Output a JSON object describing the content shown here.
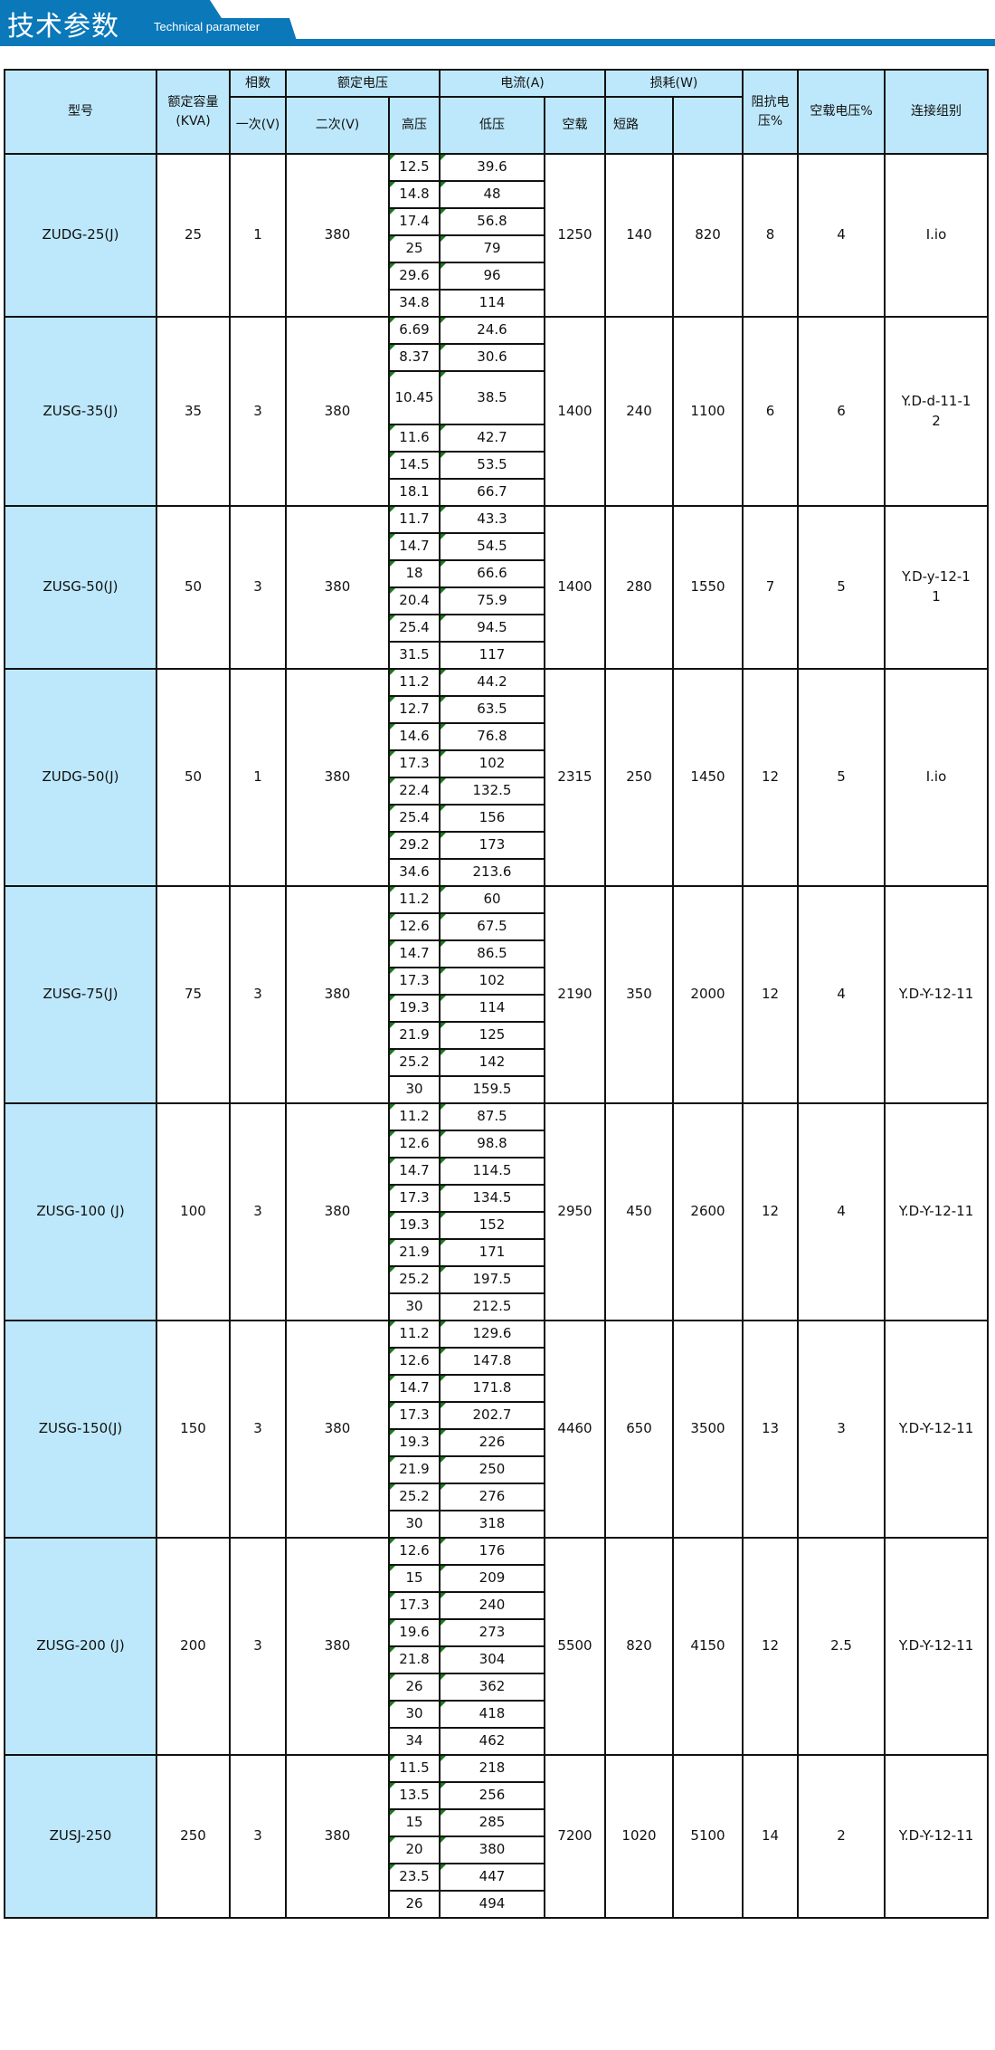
{
  "banner": {
    "title": "技术参数",
    "subtitle": "Technical parameter",
    "color": "#0a78b9"
  },
  "header": {
    "model": "型号",
    "capacity": "额定容量(KVA)",
    "phases": "相数",
    "primary": "一次(V)",
    "rated_voltage": "额定电压",
    "secondary": "二次(V)",
    "high_voltage": "高压",
    "current": "电流(A)",
    "low_voltage": "低压",
    "no_load": "空载",
    "loss": "损耗(W)",
    "short_circuit": "短路",
    "loss_blank": "",
    "impedance": "阻抗电压%",
    "no_load_voltage": "空载电压%",
    "connection": "连接组别"
  },
  "rows": [
    {
      "model": "ZUDG-25(J)",
      "capacity": "25",
      "phases": "1",
      "secondary": "380",
      "no_load": "1250",
      "short": "140",
      "loss2": "820",
      "impedance": "8",
      "noload_v": "4",
      "connection": "I.io",
      "sub": [
        [
          "12.5",
          "39.6"
        ],
        [
          "14.8",
          "48"
        ],
        [
          "17.4",
          "56.8"
        ],
        [
          "25",
          "79"
        ],
        [
          "29.6",
          "96"
        ],
        [
          "34.8",
          "114"
        ]
      ]
    },
    {
      "model": "ZUSG-35(J)",
      "capacity": "35",
      "phases": "3",
      "secondary": "380",
      "no_load": "1400",
      "short": "240",
      "loss2": "1100",
      "impedance": "6",
      "noload_v": "6",
      "connection": "Y.D-d-11-12",
      "sub": [
        [
          "6.69",
          "24.6"
        ],
        [
          "8.37",
          "30.6"
        ],
        [
          "10.45",
          "38.5"
        ],
        [
          "11.6",
          "42.7"
        ],
        [
          "14.5",
          "53.5"
        ],
        [
          "18.1",
          "66.7"
        ]
      ]
    },
    {
      "model": "ZUSG-50(J)",
      "capacity": "50",
      "phases": "3",
      "secondary": "380",
      "no_load": "1400",
      "short": "280",
      "loss2": "1550",
      "impedance": "7",
      "noload_v": "5",
      "connection": "Y.D-y-12-11",
      "sub": [
        [
          "11.7",
          "43.3"
        ],
        [
          "14.7",
          "54.5"
        ],
        [
          "18",
          "66.6"
        ],
        [
          "20.4",
          "75.9"
        ],
        [
          "25.4",
          "94.5"
        ],
        [
          "31.5",
          "117"
        ]
      ]
    },
    {
      "model": "ZUDG-50(J)",
      "capacity": "50",
      "phases": "1",
      "secondary": "380",
      "no_load": "2315",
      "short": "250",
      "loss2": "1450",
      "impedance": "12",
      "noload_v": "5",
      "connection": "I.io",
      "sub": [
        [
          "11.2",
          "44.2"
        ],
        [
          "12.7",
          "63.5"
        ],
        [
          "14.6",
          "76.8"
        ],
        [
          "17.3",
          "102"
        ],
        [
          "22.4",
          "132.5"
        ],
        [
          "25.4",
          "156"
        ],
        [
          "29.2",
          "173"
        ],
        [
          "34.6",
          "213.6"
        ]
      ]
    },
    {
      "model": "ZUSG-75(J)",
      "capacity": "75",
      "phases": "3",
      "secondary": "380",
      "no_load": "2190",
      "short": "350",
      "loss2": "2000",
      "impedance": "12",
      "noload_v": "4",
      "connection": "Y.D-Y-12-11",
      "sub": [
        [
          "11.2",
          "60"
        ],
        [
          "12.6",
          "67.5"
        ],
        [
          "14.7",
          "86.5"
        ],
        [
          "17.3",
          "102"
        ],
        [
          "19.3",
          "114"
        ],
        [
          "21.9",
          "125"
        ],
        [
          "25.2",
          "142"
        ],
        [
          "30",
          "159.5"
        ]
      ]
    },
    {
      "model": "ZUSG-100 (J)",
      "capacity": "100",
      "phases": "3",
      "secondary": "380",
      "no_load": "2950",
      "short": "450",
      "loss2": "2600",
      "impedance": "12",
      "noload_v": "4",
      "connection": "Y.D-Y-12-11",
      "sub": [
        [
          "11.2",
          "87.5"
        ],
        [
          "12.6",
          "98.8"
        ],
        [
          "14.7",
          "114.5"
        ],
        [
          "17.3",
          "134.5"
        ],
        [
          "19.3",
          "152"
        ],
        [
          "21.9",
          "171"
        ],
        [
          "25.2",
          "197.5"
        ],
        [
          "30",
          "212.5"
        ]
      ]
    },
    {
      "model": "ZUSG-150(J)",
      "capacity": "150",
      "phases": "3",
      "secondary": "380",
      "no_load": "4460",
      "short": "650",
      "loss2": "3500",
      "impedance": "13",
      "noload_v": "3",
      "connection": "Y.D-Y-12-11",
      "sub": [
        [
          "11.2",
          "129.6"
        ],
        [
          "12.6",
          "147.8"
        ],
        [
          "14.7",
          "171.8"
        ],
        [
          "17.3",
          "202.7"
        ],
        [
          "19.3",
          "226"
        ],
        [
          "21.9",
          "250"
        ],
        [
          "25.2",
          "276"
        ],
        [
          "30",
          "318"
        ]
      ]
    },
    {
      "model": "ZUSG-200 (J)",
      "capacity": "200",
      "phases": "3",
      "secondary": "380",
      "no_load": "5500",
      "short": "820",
      "loss2": "4150",
      "impedance": "12",
      "noload_v": "2.5",
      "connection": "Y.D-Y-12-11",
      "sub": [
        [
          "12.6",
          "176"
        ],
        [
          "15",
          "209"
        ],
        [
          "17.3",
          "240"
        ],
        [
          "19.6",
          "273"
        ],
        [
          "21.8",
          "304"
        ],
        [
          "26",
          "362"
        ],
        [
          "30",
          "418"
        ],
        [
          "34",
          "462"
        ]
      ]
    },
    {
      "model": "ZUSJ-250",
      "capacity": "250",
      "phases": "3",
      "secondary": "380",
      "no_load": "7200",
      "short": "1020",
      "loss2": "5100",
      "impedance": "14",
      "noload_v": "2",
      "connection": "Y.D-Y-12-11",
      "sub": [
        [
          "11.5",
          "218"
        ],
        [
          "13.5",
          "256"
        ],
        [
          "15",
          "285"
        ],
        [
          "20",
          "380"
        ],
        [
          "23.5",
          "447"
        ],
        [
          "26",
          "494"
        ]
      ]
    }
  ]
}
